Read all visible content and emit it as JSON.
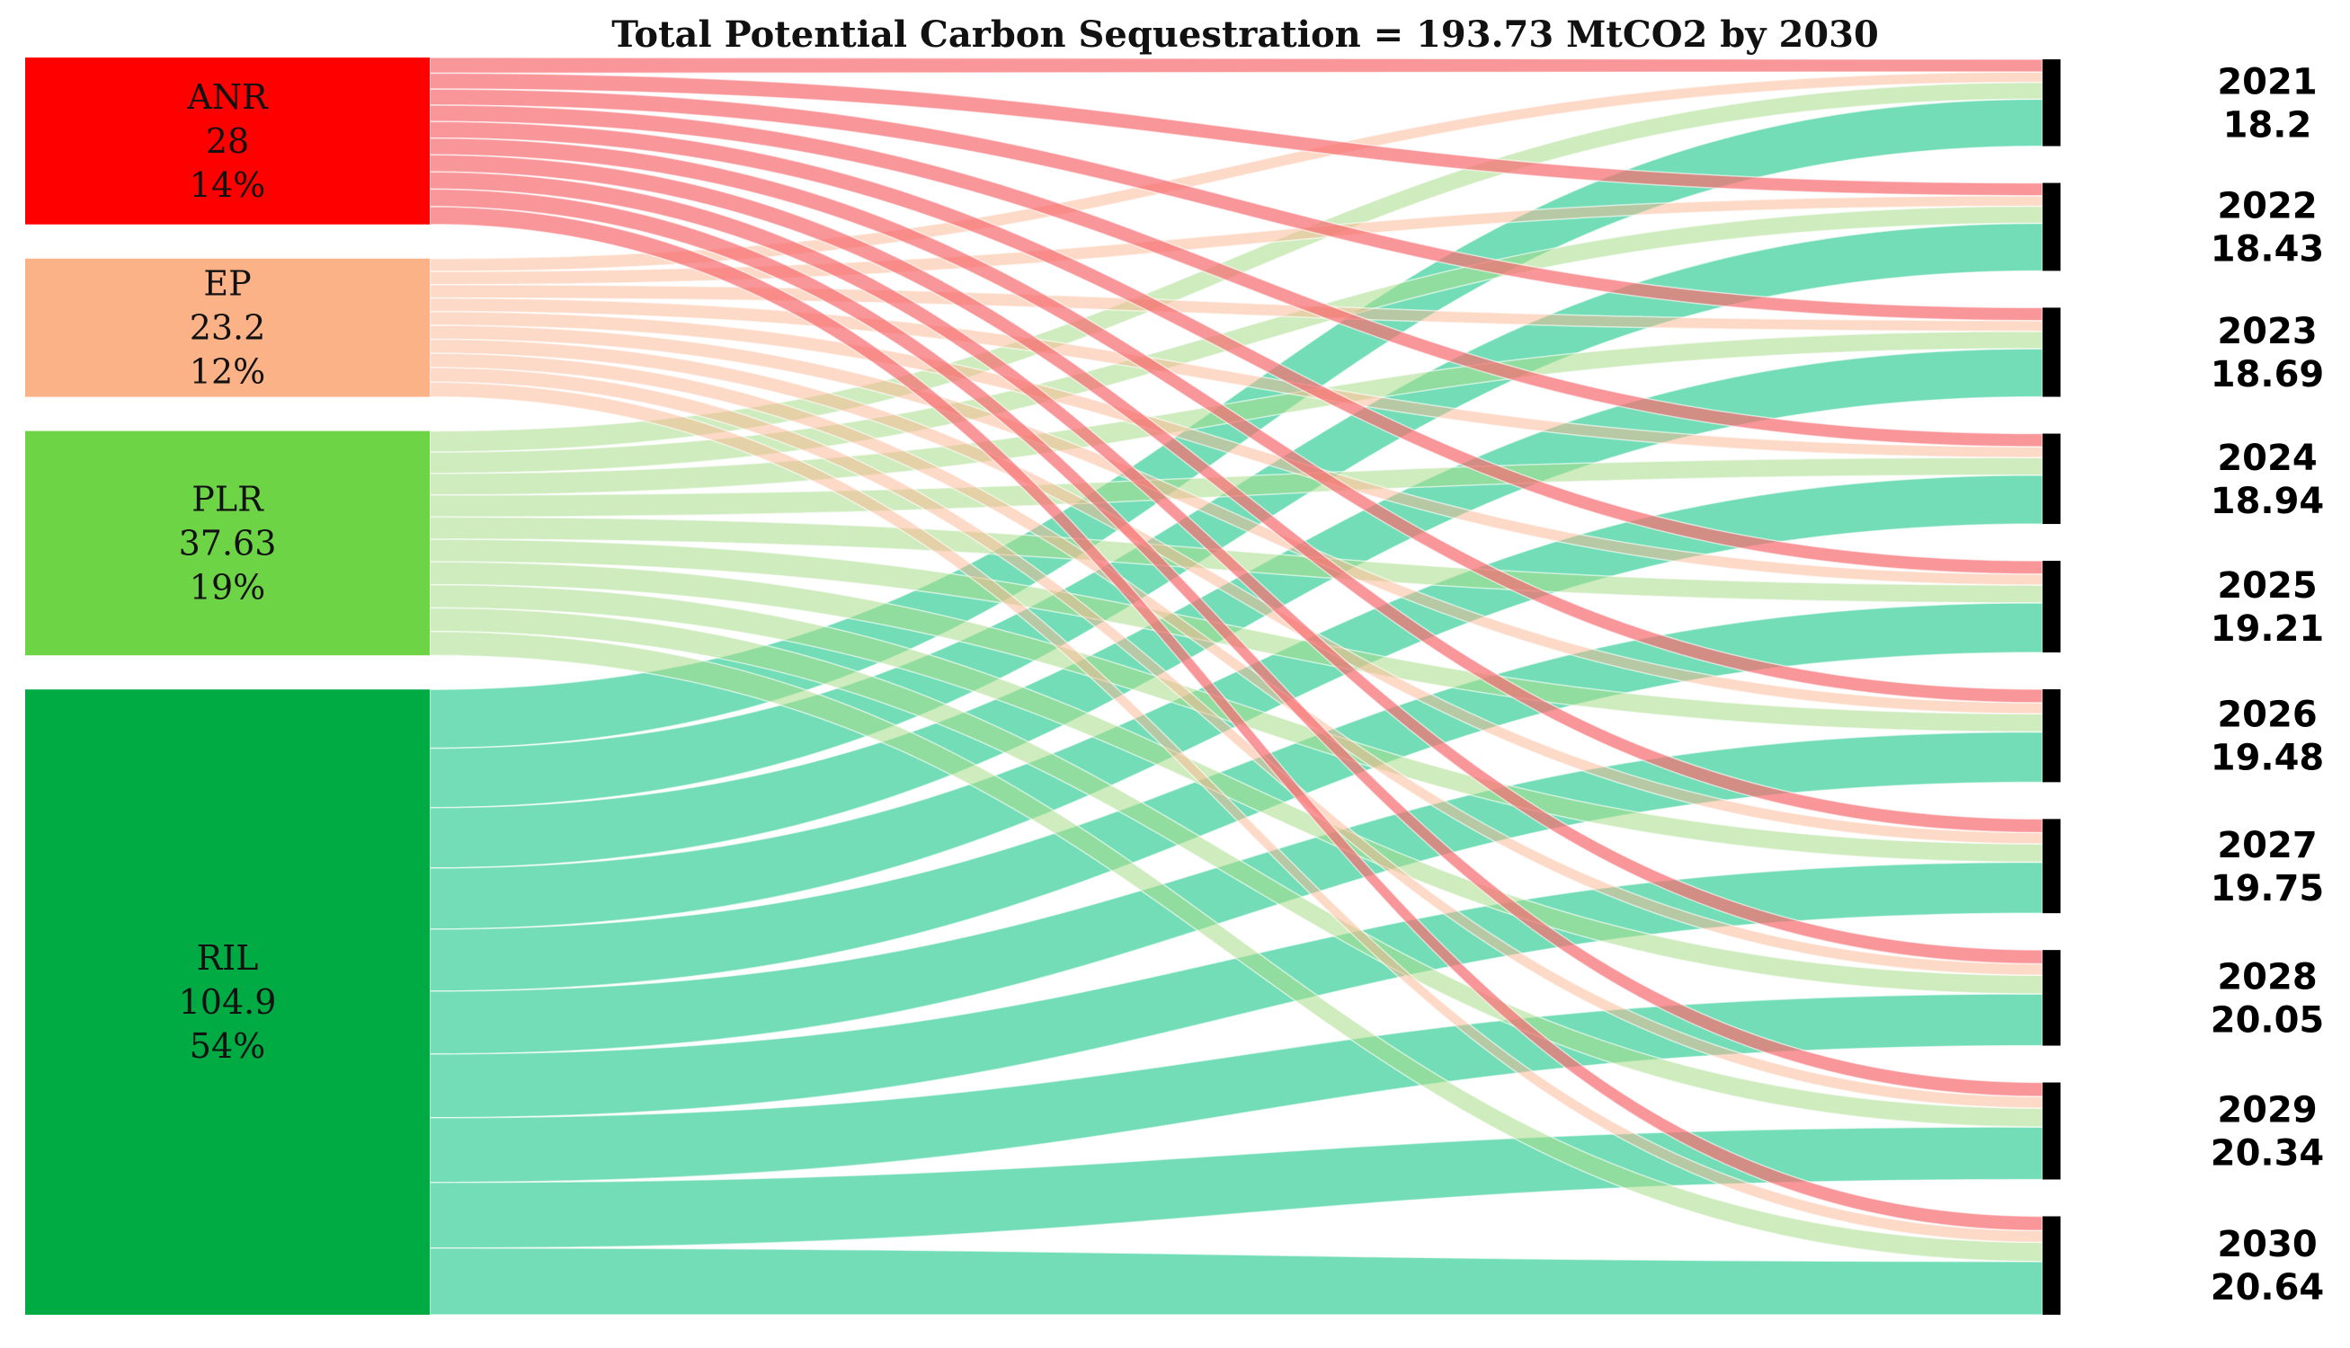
{
  "chart_data": {
    "type": "sankey",
    "title": "Total Potential Carbon Sequestration = 193.73 MtCO2 by 2030",
    "sources": [
      {
        "name": "ANR",
        "value": "28",
        "share": "14%",
        "color": "#ff0000",
        "link_color": "#f76d72",
        "link_opacity": 0.72
      },
      {
        "name": "EP",
        "value": "23.2",
        "share": "12%",
        "color": "#fcb287",
        "link_color": "#fcb590",
        "link_opacity": 0.5
      },
      {
        "name": "PLR",
        "value": "37.63",
        "share": "19%",
        "color": "#6dd445",
        "link_color": "#a7dc8a",
        "link_opacity": 0.55
      },
      {
        "name": "RIL",
        "value": "104.9",
        "share": "54%",
        "color": "#00ab44",
        "link_color": "#31cd96",
        "link_opacity": 0.68
      }
    ],
    "targets": [
      {
        "year": "2021",
        "value": "18.2"
      },
      {
        "year": "2022",
        "value": "18.43"
      },
      {
        "year": "2023",
        "value": "18.69"
      },
      {
        "year": "2024",
        "value": "18.94"
      },
      {
        "year": "2025",
        "value": "19.21"
      },
      {
        "year": "2026",
        "value": "19.48"
      },
      {
        "year": "2027",
        "value": "19.75"
      },
      {
        "year": "2028",
        "value": "20.05"
      },
      {
        "year": "2029",
        "value": "20.34"
      },
      {
        "year": "2030",
        "value": "20.64"
      }
    ],
    "node_bar_color": "#000000"
  }
}
